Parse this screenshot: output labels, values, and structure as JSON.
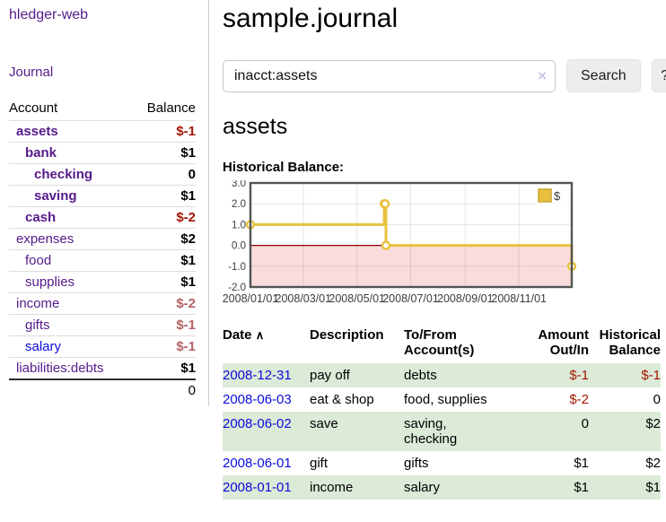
{
  "app": {
    "title": "hledger-web",
    "nav_journal": "Journal"
  },
  "sidebar": {
    "col_account": "Account",
    "col_balance": "Balance",
    "accounts": [
      {
        "name": "assets",
        "depth": 1,
        "bold": true,
        "balance": "$-1",
        "balance_class": "neg"
      },
      {
        "name": "bank",
        "depth": 2,
        "bold": true,
        "balance": "$1",
        "balance_class": "pos"
      },
      {
        "name": "checking",
        "depth": 3,
        "bold": true,
        "balance": "0",
        "balance_class": "pos"
      },
      {
        "name": "saving",
        "depth": 3,
        "bold": true,
        "balance": "$1",
        "balance_class": "pos"
      },
      {
        "name": "cash",
        "depth": 2,
        "bold": true,
        "balance": "$-2",
        "balance_class": "neg"
      },
      {
        "name": "expenses",
        "depth": 1,
        "bold": false,
        "balance": "$2",
        "balance_class": "pos"
      },
      {
        "name": "food",
        "depth": 2,
        "bold": false,
        "balance": "$1",
        "balance_class": "pos"
      },
      {
        "name": "supplies",
        "depth": 2,
        "bold": false,
        "balance": "$1",
        "balance_class": "pos"
      },
      {
        "name": "income",
        "depth": 1,
        "bold": false,
        "balance": "$-2",
        "balance_class": "neg-muted"
      },
      {
        "name": "gifts",
        "depth": 2,
        "bold": false,
        "balance": "$-1",
        "balance_class": "neg-muted"
      },
      {
        "name": "salary",
        "depth": 2,
        "bold": false,
        "balance": "$-1",
        "balance_class": "neg-muted",
        "link_class": "blue"
      },
      {
        "name": "liabilities:debts",
        "depth": 1,
        "bold": false,
        "balance": "$1",
        "balance_class": "pos"
      }
    ],
    "total": "0"
  },
  "main": {
    "title": "sample.journal",
    "search": {
      "value": "inacct:assets",
      "clear_icon": "×",
      "button_label": "Search",
      "help_label": "?"
    },
    "account_heading": "assets",
    "chart_label": "Historical Balance:"
  },
  "chart_data": {
    "type": "line",
    "step": true,
    "title": "Historical Balance",
    "series": [
      {
        "name": "$",
        "color": "#e7c13f",
        "points": [
          [
            "2008-01-01",
            1
          ],
          [
            "2008-06-01",
            2
          ],
          [
            "2008-06-02",
            2
          ],
          [
            "2008-06-03",
            0
          ],
          [
            "2008-12-31",
            -1
          ]
        ]
      }
    ],
    "x_range": [
      "2008-01-01",
      "2008-12-31"
    ],
    "ylim": [
      -2,
      3
    ],
    "yticks": [
      3,
      2,
      1,
      0,
      -1,
      -2
    ],
    "ytick_labels": [
      "3.0",
      "2.0",
      "1.0",
      "0.0",
      "-1.0",
      "-2.0"
    ],
    "xticks": [
      "2008-01-01",
      "2008-03-01",
      "2008-05-01",
      "2008-07-01",
      "2008-09-01",
      "2008-11-01"
    ],
    "xtick_labels": [
      "2008/01/01",
      "2008/03/01",
      "2008/05/01",
      "2008/07/01",
      "2008/09/01",
      "2008/11/01"
    ],
    "legend": "$",
    "legend_position": "top-right",
    "grid": true,
    "zero_line_color": "#8b0000",
    "negative_fill": "#fadcdc",
    "border_color": "#545454",
    "marker_fill": "#ffffff"
  },
  "register": {
    "columns": [
      "Date",
      "Description",
      "To/From\nAccount(s)",
      "Amount\nOut/In",
      "Historical\nBalance"
    ],
    "sort_indicator": "∧",
    "rows": [
      {
        "date": "2008-12-31",
        "description": "pay off",
        "accounts": "debts",
        "amount": "$-1",
        "amount_class": "neg",
        "balance": "$-1",
        "balance_class": "neg",
        "shade": true
      },
      {
        "date": "2008-06-03",
        "description": "eat & shop",
        "accounts": "food, supplies",
        "amount": "$-2",
        "amount_class": "neg",
        "balance": "0",
        "balance_class": "pos",
        "shade": false
      },
      {
        "date": "2008-06-02",
        "description": "save",
        "accounts": "saving,\nchecking",
        "amount": "0",
        "amount_class": "pos",
        "balance": "$2",
        "balance_class": "pos",
        "shade": true
      },
      {
        "date": "2008-06-01",
        "description": "gift",
        "accounts": "gifts",
        "amount": "$1",
        "amount_class": "pos",
        "balance": "$2",
        "balance_class": "pos",
        "shade": false
      },
      {
        "date": "2008-01-01",
        "description": "income",
        "accounts": "salary",
        "amount": "$1",
        "amount_class": "pos",
        "balance": "$1",
        "balance_class": "pos",
        "shade": true
      }
    ]
  },
  "palette": {
    "link_purple": "#551a8b",
    "link_blue": "#0b0bdd",
    "negative": "#a31500",
    "negative_muted": "#b26262",
    "row_green": "#dcead8",
    "button_bg": "#ededed",
    "border_light": "#dddddd"
  }
}
